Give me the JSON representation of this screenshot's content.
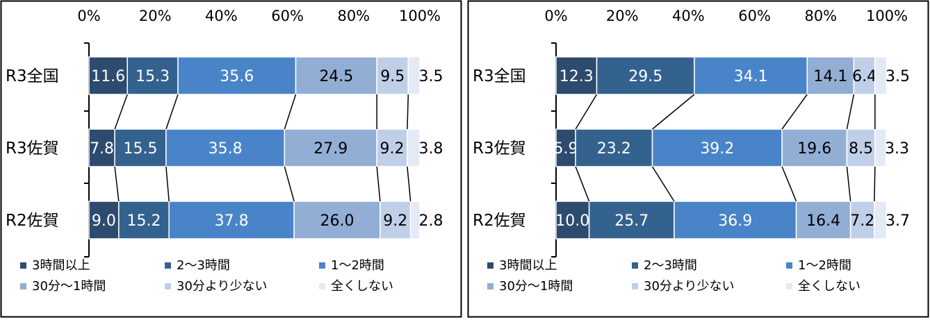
{
  "colors": [
    "#2d4b6f",
    "#34628f",
    "#4a84c8",
    "#92aed5",
    "#bfcfe8",
    "#e3eaf5"
  ],
  "chart_data": [
    {
      "type": "bar",
      "orientation": "horizontal",
      "stacked": "percent",
      "xlim": [
        0,
        100
      ],
      "ticks": [
        "0%",
        "20%",
        "40%",
        "60%",
        "80%",
        "100%"
      ],
      "categories": [
        "R3全国",
        "R3佐賀",
        "R2佐賀"
      ],
      "series": [
        {
          "name": "3時間以上",
          "values": [
            11.6,
            7.8,
            9.0
          ],
          "labels": [
            "11.6",
            "7.8",
            "9.0"
          ]
        },
        {
          "name": "2～3時間",
          "values": [
            15.3,
            15.5,
            15.2
          ],
          "labels": [
            "15.3",
            "15.5",
            "15.2"
          ]
        },
        {
          "name": "1～2時間",
          "values": [
            35.6,
            35.8,
            37.8
          ],
          "labels": [
            "35.6",
            "35.8",
            "37.8"
          ]
        },
        {
          "name": "30分～1時間",
          "values": [
            24.5,
            27.9,
            26.0
          ],
          "labels": [
            "24.5",
            "27.9",
            "26.0"
          ]
        },
        {
          "name": "30分より少ない",
          "values": [
            9.5,
            9.2,
            9.2
          ],
          "labels": [
            "9.5",
            "9.2",
            "9.2"
          ]
        },
        {
          "name": "全くしない",
          "values": [
            3.5,
            3.8,
            2.8
          ],
          "labels": [
            "3.5",
            "3.8",
            "2.8"
          ]
        }
      ],
      "legend_position": "bottom",
      "grid": false
    },
    {
      "type": "bar",
      "orientation": "horizontal",
      "stacked": "percent",
      "xlim": [
        0,
        100
      ],
      "ticks": [
        "0%",
        "20%",
        "40%",
        "60%",
        "80%",
        "100%"
      ],
      "categories": [
        "R3全国",
        "R3佐賀",
        "R2佐賀"
      ],
      "series": [
        {
          "name": "3時間以上",
          "values": [
            12.3,
            5.9,
            10.0
          ],
          "labels": [
            "12.3",
            "5.9",
            "10.0"
          ]
        },
        {
          "name": "2～3時間",
          "values": [
            29.5,
            23.2,
            25.7
          ],
          "labels": [
            "29.5",
            "23.2",
            "25.7"
          ]
        },
        {
          "name": "1～2時間",
          "values": [
            34.1,
            39.2,
            36.9
          ],
          "labels": [
            "34.1",
            "39.2",
            "36.9"
          ]
        },
        {
          "name": "30分～1時間",
          "values": [
            14.1,
            19.6,
            16.4
          ],
          "labels": [
            "14.1",
            "19.6",
            "16.4"
          ]
        },
        {
          "name": "30分より少ない",
          "values": [
            6.4,
            8.5,
            7.2
          ],
          "labels": [
            "6.4",
            "8.5",
            "7.2"
          ]
        },
        {
          "name": "全くしない",
          "values": [
            3.5,
            3.3,
            3.7
          ],
          "labels": [
            "3.5",
            "3.3",
            "3.7"
          ]
        }
      ],
      "legend_position": "bottom",
      "grid": false
    }
  ]
}
